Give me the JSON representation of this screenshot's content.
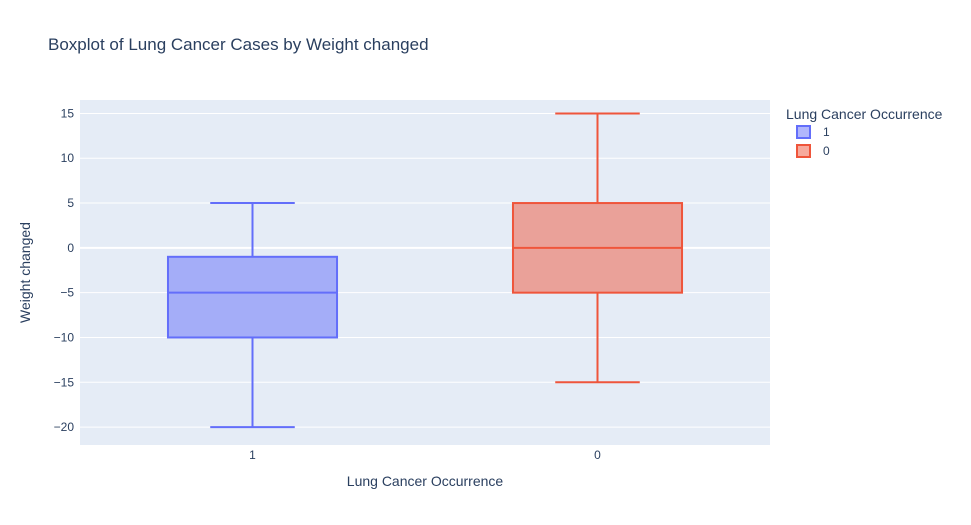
{
  "chart_data": {
    "type": "box",
    "title": "Boxplot of Lung Cancer Cases by Weight changed",
    "xlabel": "Lung Cancer Occurrence",
    "ylabel": "Weight changed",
    "ylim": [
      -22,
      16.5
    ],
    "yticks": [
      15,
      10,
      5,
      0,
      -5,
      -10,
      -15,
      -20
    ],
    "ytick_labels": [
      "15",
      "10",
      "5",
      "0",
      "−5",
      "−10",
      "−15",
      "−20"
    ],
    "categories": [
      "1",
      "0"
    ],
    "grid": true,
    "legend": {
      "title": "Lung Cancer Occurrence",
      "placement": "top-right"
    },
    "series": [
      {
        "name": "1",
        "color": "#636efa",
        "fill": "rgba(99,110,250,0.5)",
        "min": -20,
        "q1": -10,
        "median": -5,
        "q3": -1,
        "max": 5
      },
      {
        "name": "0",
        "color": "#ef553b",
        "fill": "rgba(239,85,59,0.5)",
        "min": -15,
        "q1": -5,
        "median": 0,
        "q3": 5,
        "max": 15
      }
    ],
    "colors": {
      "plot_bg": "#e5ecf6",
      "grid": "#ffffff",
      "text": "#2a3f5f"
    }
  }
}
